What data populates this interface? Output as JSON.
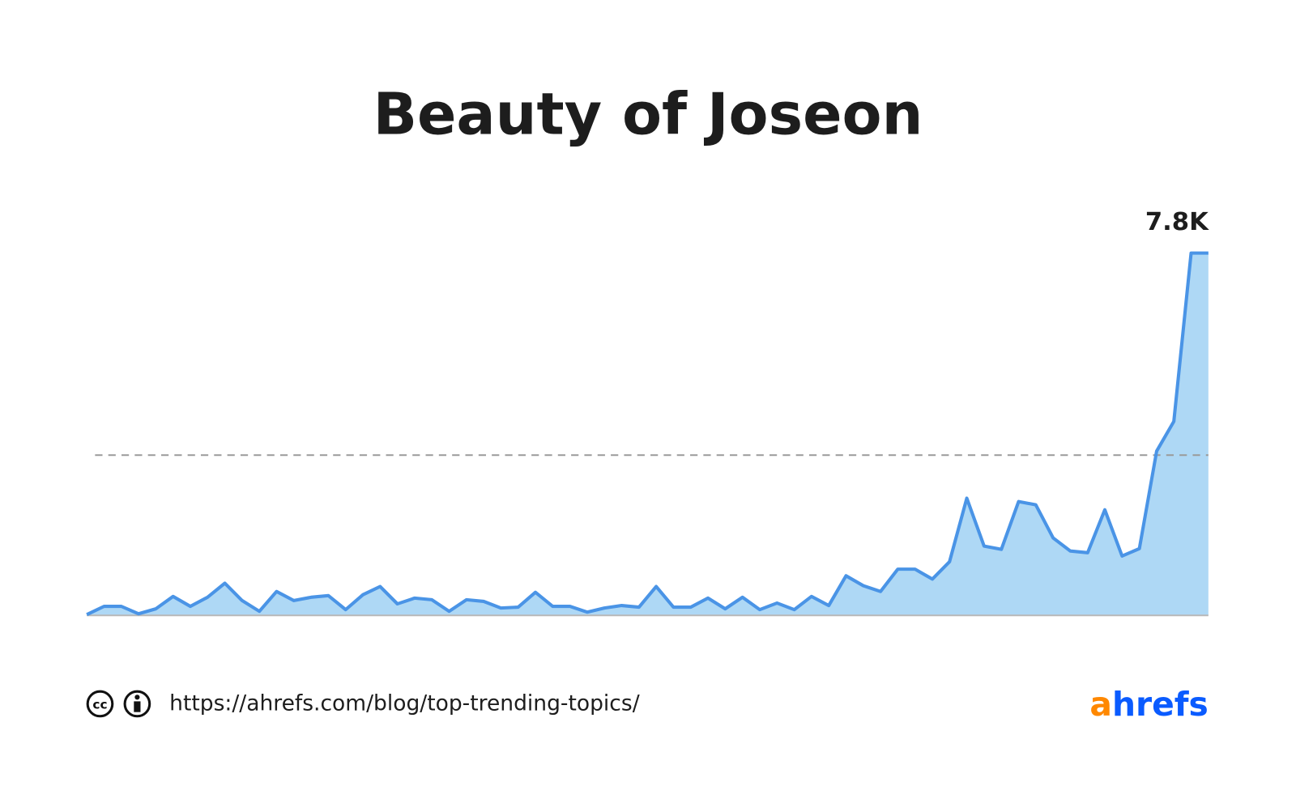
{
  "chart_data": {
    "type": "area",
    "title": "Beauty of Joseon",
    "categories": [
      null,
      null,
      null,
      null,
      null,
      null,
      null,
      null,
      null,
      null,
      null,
      null,
      null,
      null,
      null,
      null,
      null,
      null,
      null,
      null,
      null,
      null,
      null,
      null,
      null,
      null,
      null,
      null,
      null,
      null,
      null,
      null,
      null,
      null,
      null,
      null,
      null,
      null,
      null,
      null,
      null,
      null,
      null,
      null,
      null,
      null,
      null,
      null,
      null,
      null,
      null,
      null,
      null,
      null,
      null,
      null,
      null,
      null,
      null,
      null,
      null,
      null,
      null,
      null,
      null,
      null
    ],
    "values": [
      18,
      195,
      195,
      36,
      142,
      409,
      195,
      391,
      693,
      320,
      89,
      515,
      320,
      391,
      426,
      124,
      444,
      622,
      249,
      373,
      338,
      89,
      338,
      302,
      160,
      178,
      498,
      195,
      195,
      71,
      160,
      213,
      178,
      622,
      178,
      178,
      373,
      142,
      391,
      124,
      267,
      124,
      409,
      213,
      853,
      640,
      515,
      995,
      995,
      782,
      1155,
      2523,
      1493,
      1422,
      2452,
      2381,
      1670,
      1386,
      1350,
      2274,
      1279,
      1439,
      3536,
      4176,
      7800,
      7800
    ],
    "value_labels": [
      null,
      null,
      null,
      null,
      null,
      null,
      null,
      null,
      null,
      null,
      null,
      null,
      null,
      null,
      null,
      null,
      null,
      null,
      null,
      null,
      null,
      null,
      null,
      null,
      null,
      null,
      null,
      null,
      null,
      null,
      null,
      null,
      null,
      null,
      null,
      null,
      null,
      null,
      null,
      null,
      null,
      null,
      null,
      null,
      null,
      null,
      null,
      null,
      null,
      null,
      null,
      null,
      null,
      null,
      null,
      null,
      null,
      null,
      null,
      null,
      null,
      null,
      null,
      null,
      null,
      "7.8K"
    ],
    "line_color": "#4a94e6",
    "fill_color": "#aed8f5",
    "reference_line": 3450,
    "ylim": [
      0,
      8000
    ]
  },
  "footer": {
    "url": "https://ahrefs.com/blog/top-trending-topics/",
    "logo": {
      "accent": "a",
      "rest": "hrefs"
    }
  }
}
